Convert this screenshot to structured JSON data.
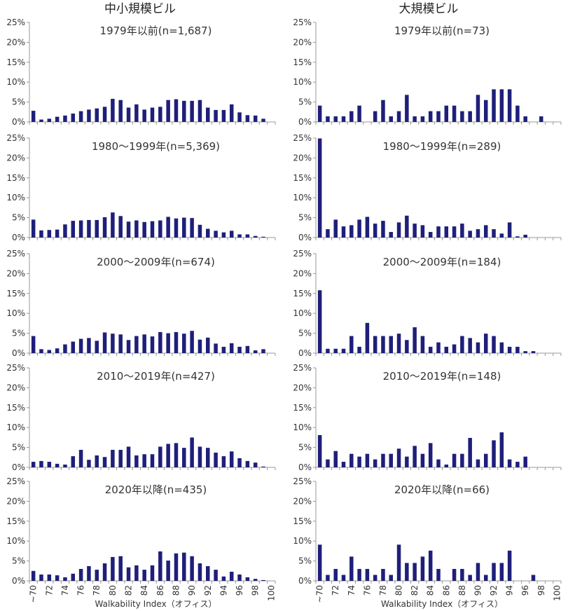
{
  "column_headers": [
    "中小規模ビル",
    "大規模ビル"
  ],
  "chart_data": {
    "type": "bar",
    "xlabel": "Walkability Index（オフィス）",
    "ylabel": "",
    "ylim": [
      0,
      25
    ],
    "yticks": [
      "0%",
      "5%",
      "10%",
      "15%",
      "20%",
      "25%"
    ],
    "categories": [
      "~70",
      "71",
      "72",
      "73",
      "74",
      "75",
      "76",
      "77",
      "78",
      "79",
      "80",
      "81",
      "82",
      "83",
      "84",
      "85",
      "86",
      "87",
      "88",
      "89",
      "90",
      "91",
      "92",
      "93",
      "94",
      "95",
      "96",
      "97",
      "98",
      "99",
      "100"
    ],
    "tick_labels": [
      "~70",
      "72",
      "74",
      "76",
      "78",
      "80",
      "82",
      "84",
      "86",
      "88",
      "90",
      "92",
      "94",
      "96",
      "98",
      "100"
    ],
    "bar_color": "#1f1f7a",
    "panels": [
      {
        "column": "中小規模ビル",
        "title": "1979年以前(n=1,687)",
        "values": [
          2.8,
          0.6,
          0.8,
          1.3,
          1.6,
          2.1,
          2.7,
          3.1,
          3.4,
          3.8,
          5.8,
          5.5,
          3.6,
          4.4,
          3.1,
          3.6,
          3.8,
          5.5,
          5.7,
          5.3,
          5.3,
          5.5,
          3.6,
          3.0,
          3.0,
          4.4,
          2.4,
          1.7,
          1.6,
          0.8,
          0
        ]
      },
      {
        "column": "大規模ビル",
        "title": "1979年以前(n=73)",
        "values": [
          4.1,
          1.4,
          1.4,
          1.4,
          2.7,
          4.1,
          0,
          2.7,
          5.5,
          1.4,
          2.7,
          6.8,
          1.4,
          1.4,
          2.7,
          2.7,
          4.1,
          4.1,
          2.7,
          2.7,
          6.8,
          5.5,
          8.2,
          8.2,
          8.2,
          4.1,
          1.4,
          0,
          1.4,
          0,
          0
        ]
      },
      {
        "column": "中小規模ビル",
        "title": "1980～1999年(n=5,369)",
        "values": [
          4.5,
          1.8,
          1.9,
          2.0,
          3.3,
          4.2,
          4.3,
          4.4,
          4.4,
          5.1,
          6.3,
          5.4,
          4.0,
          4.3,
          3.9,
          4.1,
          4.3,
          5.2,
          4.8,
          5.0,
          4.9,
          3.2,
          2.2,
          1.7,
          1.3,
          1.7,
          0.8,
          0.8,
          0.4,
          0.2,
          0
        ]
      },
      {
        "column": "大規模ビル",
        "title": "1980～1999年(n=289)",
        "values": [
          24.9,
          2.1,
          4.5,
          2.8,
          3.1,
          4.5,
          5.2,
          3.5,
          4.2,
          1.4,
          3.8,
          5.5,
          3.5,
          3.1,
          1.4,
          2.8,
          2.8,
          2.8,
          3.5,
          1.7,
          2.1,
          3.1,
          2.1,
          1.0,
          3.8,
          0.3,
          0.7,
          0,
          0,
          0,
          0
        ]
      },
      {
        "column": "中小規模ビル",
        "title": "2000～2009年(n=674)",
        "values": [
          4.3,
          1.0,
          0.8,
          1.2,
          2.2,
          2.9,
          3.6,
          3.8,
          3.1,
          5.2,
          4.9,
          4.7,
          3.3,
          4.3,
          4.7,
          4.2,
          5.3,
          5.0,
          5.3,
          4.9,
          5.6,
          3.4,
          3.9,
          2.4,
          1.6,
          2.5,
          1.6,
          1.8,
          0.7,
          1.0,
          0
        ]
      },
      {
        "column": "大規模ビル",
        "title": "2000～2009年(n=184)",
        "values": [
          15.8,
          1.1,
          1.1,
          1.1,
          4.3,
          1.6,
          7.6,
          4.3,
          4.3,
          4.3,
          4.9,
          3.3,
          6.5,
          4.3,
          1.6,
          2.7,
          1.6,
          2.2,
          4.3,
          3.8,
          2.7,
          4.9,
          4.3,
          2.7,
          1.6,
          1.6,
          0.5,
          0.5,
          0,
          0,
          0
        ]
      },
      {
        "column": "中小規模ビル",
        "title": "2010～2019年(n=427)",
        "values": [
          1.4,
          1.6,
          1.4,
          0.9,
          0.7,
          2.8,
          4.4,
          1.9,
          3.0,
          2.6,
          4.4,
          4.4,
          5.2,
          3.0,
          3.3,
          3.3,
          5.2,
          5.9,
          6.1,
          4.9,
          7.5,
          5.2,
          4.9,
          3.7,
          2.8,
          4.0,
          2.3,
          1.6,
          1.2,
          0.2,
          0
        ]
      },
      {
        "column": "大規模ビル",
        "title": "2010～2019年(n=148)",
        "values": [
          8.1,
          2.0,
          4.1,
          1.4,
          3.4,
          2.7,
          3.4,
          2.0,
          3.4,
          3.4,
          4.7,
          2.7,
          5.4,
          3.4,
          6.1,
          2.0,
          0.7,
          3.4,
          3.4,
          7.4,
          2.0,
          3.4,
          6.8,
          8.8,
          2.0,
          1.4,
          2.7,
          0,
          0,
          0,
          0
        ]
      },
      {
        "column": "中小規模ビル",
        "title": "2020年以降(n=435)",
        "values": [
          2.5,
          1.6,
          1.6,
          1.4,
          0.9,
          1.8,
          3.0,
          3.7,
          2.8,
          4.4,
          6.0,
          6.2,
          3.4,
          3.9,
          2.8,
          3.9,
          7.4,
          5.1,
          6.9,
          7.1,
          6.2,
          4.4,
          3.7,
          2.8,
          1.1,
          2.3,
          1.6,
          0.9,
          0.5,
          0.2,
          0
        ]
      },
      {
        "column": "大規模ビル",
        "title": "2020年以降(n=66)",
        "values": [
          9.1,
          1.5,
          3.0,
          1.5,
          6.1,
          3.0,
          3.0,
          1.5,
          3.0,
          1.5,
          9.1,
          4.5,
          4.5,
          6.1,
          7.6,
          3.0,
          0,
          3.0,
          3.0,
          1.5,
          4.5,
          1.5,
          4.5,
          4.5,
          7.6,
          0,
          0,
          1.5,
          0,
          0,
          0
        ]
      }
    ]
  }
}
